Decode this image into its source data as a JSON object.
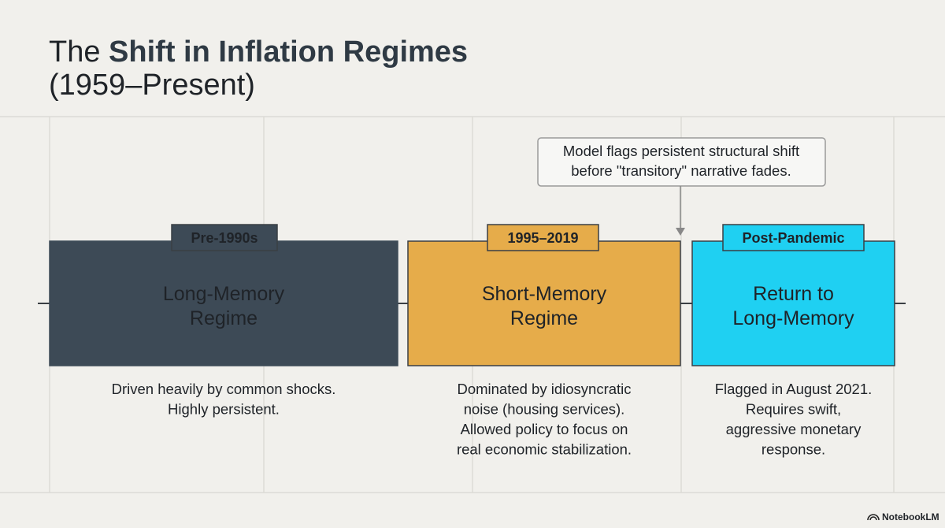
{
  "title": {
    "prefix": "The",
    "bold": "Shift in Inflation Regimes",
    "line2": "(1959–Present)"
  },
  "callout": {
    "lines": [
      "Model flags persistent structural shift",
      "before \"transitory\" narrative fades."
    ]
  },
  "regimes": [
    {
      "tag": "Pre-1990s",
      "name": [
        "Long-Memory",
        "Regime"
      ],
      "description": [
        "Driven heavily by common shocks.",
        "Highly persistent."
      ]
    },
    {
      "tag": "1995–2019",
      "name": [
        "Short-Memory",
        "Regime"
      ],
      "description": [
        "Dominated by idiosyncratic",
        "noise (housing services).",
        "Allowed policy to focus on",
        "real economic stabilization."
      ]
    },
    {
      "tag": "Post-Pandemic",
      "name": [
        "Return to",
        "Long-Memory"
      ],
      "description": [
        "Flagged in August 2021.",
        "Requires swift,",
        "aggressive monetary",
        "response."
      ]
    }
  ],
  "footer": "NotebookLM"
}
